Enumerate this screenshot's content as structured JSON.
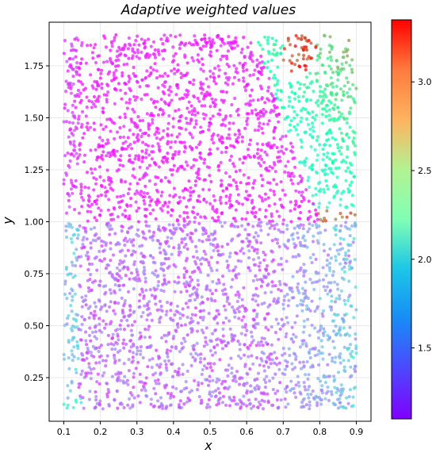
{
  "chart_data": {
    "type": "scatter",
    "title": "Adaptive weighted values",
    "xlabel": "x",
    "ylabel": "y",
    "xlim": [
      0.06,
      0.94
    ],
    "ylim": [
      0.04,
      1.96
    ],
    "x_ticks": [
      "0.1",
      "0.2",
      "0.3",
      "0.4",
      "0.5",
      "0.6",
      "0.7",
      "0.8",
      "0.9"
    ],
    "y_ticks": [
      "0.25",
      "0.50",
      "0.75",
      "1.00",
      "1.25",
      "1.50",
      "1.75"
    ],
    "grid": true,
    "colormap": "rainbow",
    "color_range": [
      1.1,
      3.35
    ],
    "colorbar_ticks": [
      "1.5",
      "2.0",
      "2.5",
      "3.0"
    ],
    "x_range_points": [
      0.1,
      0.9
    ],
    "y_range_points": [
      0.1,
      1.9
    ],
    "point_count": 3800,
    "regions": [
      {
        "name": "upper-left block",
        "x": [
          0.1,
          0.6
        ],
        "y": [
          1.0,
          1.9
        ],
        "value_range": [
          1.1,
          1.25
        ]
      },
      {
        "name": "upper-right diagonal band",
        "x": [
          0.6,
          0.9
        ],
        "y": [
          1.0,
          1.9
        ],
        "value_range": [
          1.8,
          2.7
        ]
      },
      {
        "name": "upper-right hot spot",
        "x": [
          0.7,
          0.78
        ],
        "y": [
          1.72,
          1.9
        ],
        "value_range": [
          3.0,
          3.35
        ]
      },
      {
        "name": "lower block",
        "x": [
          0.1,
          0.9
        ],
        "y": [
          0.1,
          1.0
        ],
        "value_range": [
          1.2,
          1.6
        ]
      },
      {
        "name": "lower-right edge",
        "x": [
          0.72,
          0.9
        ],
        "y": [
          0.1,
          1.0
        ],
        "value_range": [
          1.6,
          2.1
        ]
      }
    ]
  },
  "colors": {
    "background": "#ffffff",
    "grid": "#e8e8e8",
    "axis": "#000000"
  }
}
